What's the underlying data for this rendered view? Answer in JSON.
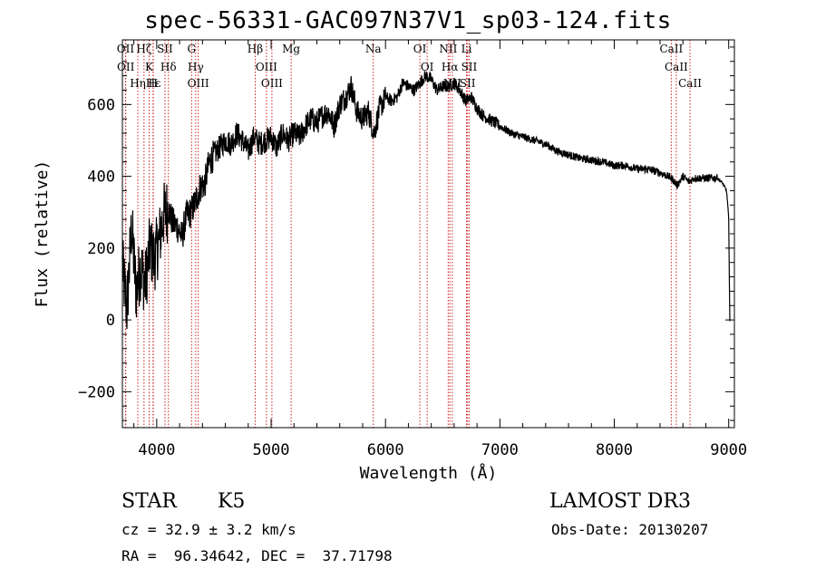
{
  "chart_data": {
    "type": "line",
    "title": "spec-56331-GAC097N37V1_sp03-124.fits",
    "xlabel": "Wavelength (Å)",
    "ylabel": "Flux (relative)",
    "xlim": [
      3700,
      9050
    ],
    "ylim": [
      -300,
      780
    ],
    "xticks": [
      4000,
      5000,
      6000,
      7000,
      8000,
      9000
    ],
    "xticklabels": [
      "4000",
      "5000",
      "6000",
      "7000",
      "8000",
      "9000"
    ],
    "yticks": [
      -200,
      0,
      200,
      400,
      600
    ],
    "yticklabels": [
      "−200",
      "0",
      "200",
      "400",
      "600"
    ],
    "series": [
      {
        "name": "flux",
        "x": [
          3700,
          3740,
          3780,
          3820,
          3860,
          3900,
          3940,
          3980,
          4020,
          4060,
          4100,
          4140,
          4180,
          4220,
          4260,
          4300,
          4340,
          4380,
          4420,
          4460,
          4500,
          4550,
          4600,
          4650,
          4700,
          4750,
          4800,
          4850,
          4900,
          4950,
          5000,
          5050,
          5100,
          5150,
          5200,
          5250,
          5300,
          5350,
          5400,
          5450,
          5500,
          5550,
          5600,
          5650,
          5700,
          5750,
          5800,
          5850,
          5900,
          5950,
          6000,
          6050,
          6100,
          6150,
          6200,
          6250,
          6300,
          6350,
          6400,
          6450,
          6500,
          6550,
          6600,
          6650,
          6700,
          6750,
          6800,
          6850,
          6900,
          6950,
          7000,
          7100,
          7200,
          7300,
          7400,
          7500,
          7600,
          7700,
          7800,
          7900,
          8000,
          8100,
          8200,
          8300,
          8400,
          8500,
          8550,
          8600,
          8650,
          8700,
          8800,
          8900,
          8950,
          8980,
          8990,
          9000,
          9010
        ],
        "y": [
          150,
          30,
          260,
          80,
          150,
          100,
          200,
          170,
          220,
          290,
          310,
          270,
          260,
          230,
          290,
          300,
          330,
          370,
          380,
          440,
          460,
          480,
          500,
          490,
          520,
          500,
          470,
          510,
          490,
          500,
          510,
          480,
          520,
          500,
          520,
          510,
          540,
          560,
          550,
          570,
          580,
          540,
          600,
          620,
          650,
          580,
          560,
          580,
          520,
          590,
          620,
          610,
          620,
          660,
          650,
          640,
          660,
          680,
          670,
          640,
          650,
          650,
          660,
          640,
          610,
          620,
          590,
          570,
          560,
          550,
          540,
          520,
          510,
          500,
          490,
          470,
          460,
          450,
          445,
          440,
          430,
          430,
          420,
          420,
          410,
          395,
          375,
          400,
          385,
          395,
          395,
          395,
          380,
          360,
          330,
          280,
          0
        ]
      }
    ],
    "lines": [
      {
        "label": "Hδ",
        "x": 4102
      },
      {
        "label": "OII",
        "x": 3727
      },
      {
        "label": "OII",
        "x": 3729
      },
      {
        "label": "Hε",
        "x": 3970
      },
      {
        "label": "Hζ",
        "x": 3889
      },
      {
        "label": "Hη",
        "x": 3835
      },
      {
        "label": "K",
        "x": 3934
      },
      {
        "label": "H",
        "x": 3968
      },
      {
        "label": "SII",
        "x": 4072
      },
      {
        "label": "OIII",
        "x": 4363
      },
      {
        "label": "Hγ",
        "x": 4341
      },
      {
        "label": "G",
        "x": 4305
      },
      {
        "label": "Hβ",
        "x": 4861
      },
      {
        "label": "OIII",
        "x": 4959
      },
      {
        "label": "OIII",
        "x": 5007
      },
      {
        "label": "Mg",
        "x": 5175
      },
      {
        "label": "Na",
        "x": 5893
      },
      {
        "label": "OI",
        "x": 6300
      },
      {
        "label": "OI",
        "x": 6364
      },
      {
        "label": "Hα",
        "x": 6563
      },
      {
        "label": "NII",
        "x": 6548
      },
      {
        "label": "NII",
        "x": 6584
      },
      {
        "label": "SII",
        "x": 6717
      },
      {
        "label": "SII",
        "x": 6731
      },
      {
        "label": "Li",
        "x": 6708
      },
      {
        "label": "CaII",
        "x": 8498
      },
      {
        "label": "CaII",
        "x": 8542
      },
      {
        "label": "CaII",
        "x": 8662
      }
    ]
  },
  "info": {
    "object_class": "STAR",
    "subclass": "K5",
    "survey": "LAMOST DR3",
    "cz": "cz = 32.9 ± 3.2 km/s",
    "obs_date": "Obs-Date: 20130207",
    "coords": "RA =  96.34642, DEC =  37.71798"
  },
  "colors": {
    "axis": "#000000",
    "line": "#000000",
    "marker_line": "#cc2222",
    "marker_text": "#000000"
  }
}
